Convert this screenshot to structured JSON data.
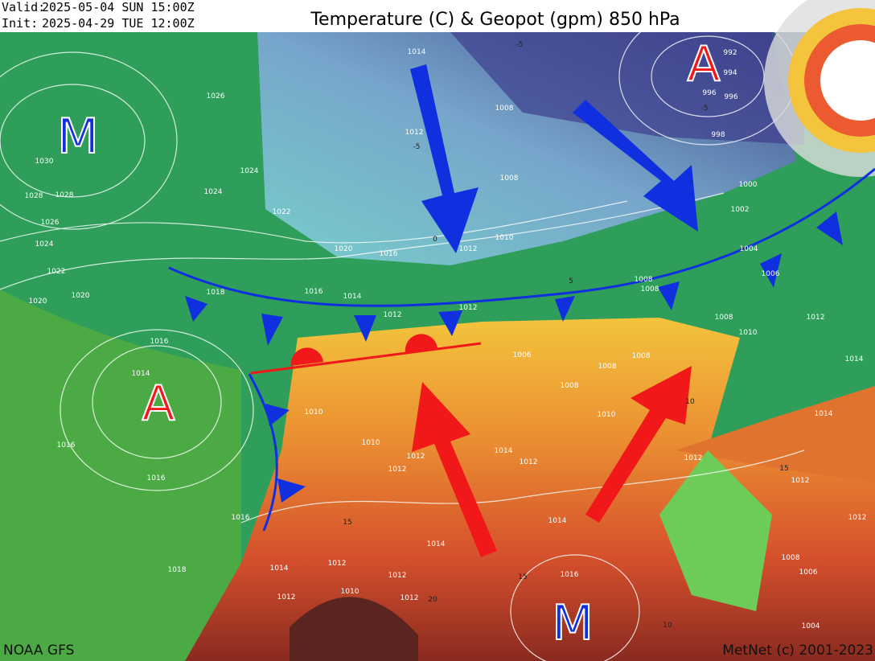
{
  "header": {
    "valid_label": "Valid:",
    "valid": "2025-05-04 SUN  15:00Z",
    "init_label": "Init:",
    "init": "2025-04-29 TUE  12:00Z",
    "title": "Temperature (C) & Geopot (gpm) 850 hPa"
  },
  "pressure_centers": [
    "M",
    "A",
    "A",
    "M"
  ],
  "isobar_labels": [
    "1026",
    "1030",
    "1028",
    "1028",
    "1026",
    "1024",
    "1022",
    "1020",
    "1020",
    "1024",
    "1024",
    "1022",
    "1020",
    "1018",
    "1016",
    "1014",
    "1016",
    "1014",
    "1016",
    "1016",
    "1016",
    "1018",
    "1014",
    "1012",
    "1008",
    "1008",
    "1010",
    "1012",
    "1016",
    "1012",
    "1012",
    "1008",
    "1008",
    "1004",
    "1006",
    "1002",
    "1000",
    "992",
    "994",
    "996",
    "996",
    "998",
    "1008",
    "1010",
    "1012",
    "1014",
    "1006",
    "1008",
    "1008",
    "1008",
    "1010",
    "1010",
    "1012",
    "1012",
    "1014",
    "1012",
    "1014",
    "1012",
    "1014",
    "1012",
    "1008",
    "1006",
    "1004",
    "1012",
    "1012",
    "1012",
    "1012",
    "1010",
    "1012",
    "1014",
    "1016",
    "1014",
    "1010"
  ],
  "temperature_labels": [
    "-5",
    "-5",
    "-5",
    "0",
    "5",
    "10",
    "10",
    "15",
    "15",
    "15",
    "20"
  ],
  "footer": {
    "source": "NOAA GFS",
    "credit": "MetNet (c) 2001-2023"
  }
}
